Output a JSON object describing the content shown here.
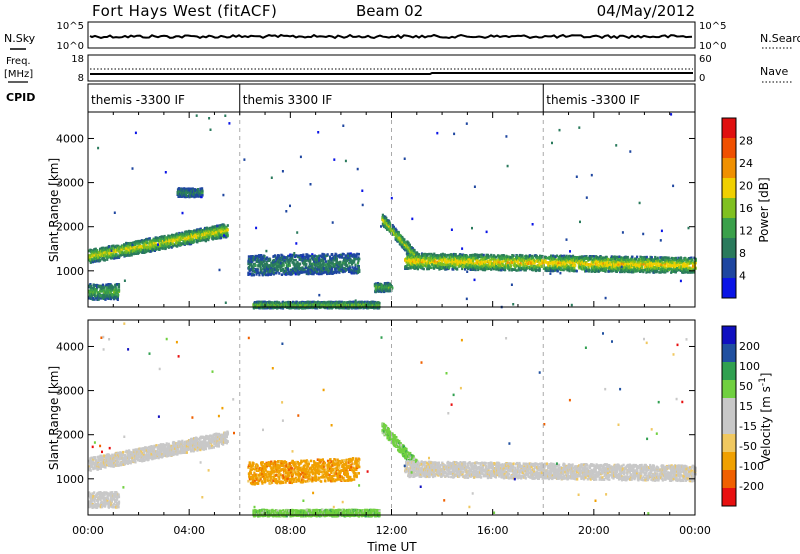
{
  "header": {
    "station": "Fort Hays West (fitACF)",
    "beam": "Beam 02",
    "date": "04/May/2012"
  },
  "left_labels": {
    "nsky": "N.Sky",
    "freq_line1": "Freq.",
    "freq_line2": "[MHz]",
    "cpid": "CPID"
  },
  "right_labels": {
    "nsearch": "N.Search",
    "nave": "Nave"
  },
  "panel_ticks": {
    "noise_left": [
      "10^5",
      "10^0"
    ],
    "noise_right": [
      "10^5",
      "10^0"
    ],
    "freq_left": [
      "18",
      "8"
    ],
    "nave_right": [
      "60",
      "0"
    ]
  },
  "cpid_segments": [
    {
      "label": "themis -3300 IF",
      "start_hour": 0,
      "end_hour": 6
    },
    {
      "label": "themis 3300 IF",
      "start_hour": 6,
      "end_hour": 18
    },
    {
      "label": "themis -3300 IF",
      "start_hour": 18,
      "end_hour": 24
    }
  ],
  "colors": {
    "power": [
      "#0a14e6",
      "#1e46a0",
      "#2a7a5c",
      "#3aa04a",
      "#80c020",
      "#f0d000",
      "#f09000",
      "#f05000",
      "#e01010"
    ],
    "velocity": [
      "#e81010",
      "#f06000",
      "#f0a000",
      "#f0c860",
      "#c8c8c8",
      "#c8c8c8",
      "#70d040",
      "#30a050",
      "#2050a0",
      "#1010c0"
    ],
    "empty": "#ffffff"
  },
  "chart_data": [
    {
      "type": "heatmap",
      "quantity": "power",
      "xlabel": "",
      "ylabel": "Slant Range [km]",
      "xlim": [
        0,
        24
      ],
      "ylim": [
        180,
        4600
      ],
      "yticks": [
        "1000",
        "2000",
        "3000",
        "4000"
      ],
      "colorbar": {
        "label": "Power [dB]",
        "ticks": [
          "4",
          "8",
          "12",
          "16",
          "20",
          "24",
          "28"
        ]
      },
      "echo_bands": [
        {
          "start_hour": 0.0,
          "end_hour": 5.5,
          "range_start_km": 1350,
          "range_end_km": 1950,
          "width_km": 300,
          "level": 0.55
        },
        {
          "start_hour": 0.0,
          "end_hour": 1.2,
          "range_start_km": 550,
          "range_end_km": 550,
          "width_km": 350,
          "level": 0.35
        },
        {
          "start_hour": 3.5,
          "end_hour": 4.5,
          "range_start_km": 2800,
          "range_end_km": 2800,
          "width_km": 200,
          "level": 0.2
        },
        {
          "start_hour": 6.3,
          "end_hour": 10.7,
          "range_start_km": 1150,
          "range_end_km": 1200,
          "width_km": 450,
          "level": 0.2
        },
        {
          "start_hour": 6.5,
          "end_hour": 11.5,
          "range_start_km": 250,
          "range_end_km": 250,
          "width_km": 150,
          "level": 0.4
        },
        {
          "start_hour": 11.3,
          "end_hour": 12.0,
          "range_start_km": 650,
          "range_end_km": 650,
          "width_km": 200,
          "level": 0.35
        },
        {
          "start_hour": 11.6,
          "end_hour": 13.0,
          "range_start_km": 2200,
          "range_end_km": 1300,
          "width_km": 250,
          "level": 0.5
        },
        {
          "start_hour": 12.5,
          "end_hour": 24.0,
          "range_start_km": 1250,
          "range_end_km": 1150,
          "width_km": 350,
          "level": 0.6
        }
      ]
    },
    {
      "type": "heatmap",
      "quantity": "velocity",
      "xlabel": "Time UT",
      "ylabel": "Slant Range [km]",
      "xlim": [
        0,
        24
      ],
      "ylim": [
        180,
        4600
      ],
      "xticks": [
        "00:00",
        "04:00",
        "08:00",
        "12:00",
        "16:00",
        "20:00",
        "00:00"
      ],
      "yticks": [
        "1000",
        "2000",
        "3000",
        "4000"
      ],
      "colorbar": {
        "label": "Velocity [m s^-1]",
        "ticks": [
          "200",
          "100",
          "50",
          "15",
          "-15",
          "-50",
          "-100",
          "-200"
        ]
      },
      "echo_bands": [
        {
          "start_hour": 0.0,
          "end_hour": 5.5,
          "range_start_km": 1350,
          "range_end_km": 1950,
          "width_km": 300,
          "vel_class": 4
        },
        {
          "start_hour": 0.0,
          "end_hour": 1.2,
          "range_start_km": 550,
          "range_end_km": 550,
          "width_km": 350,
          "vel_class": 4
        },
        {
          "start_hour": 6.3,
          "end_hour": 10.7,
          "range_start_km": 1150,
          "range_end_km": 1250,
          "width_km": 500,
          "vel_class": 2
        },
        {
          "start_hour": 6.5,
          "end_hour": 11.5,
          "range_start_km": 250,
          "range_end_km": 250,
          "width_km": 150,
          "vel_class": 6
        },
        {
          "start_hour": 11.6,
          "end_hour": 13.0,
          "range_start_km": 2200,
          "range_end_km": 1300,
          "width_km": 250,
          "vel_class": 6
        },
        {
          "start_hour": 12.5,
          "end_hour": 24.0,
          "range_start_km": 1250,
          "range_end_km": 1150,
          "width_km": 350,
          "vel_class": 4
        }
      ]
    }
  ]
}
